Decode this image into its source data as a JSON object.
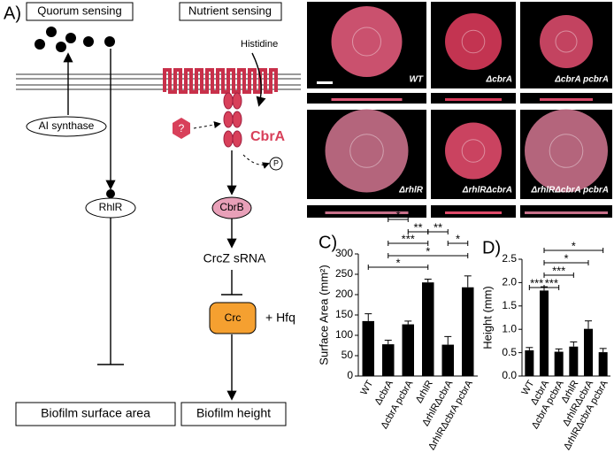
{
  "diagram": {
    "panel": "A)",
    "quorum_title": "Quorum sensing",
    "nutrient_title": "Nutrient sensing",
    "histidine": "Histidine",
    "ai_synthase": "AI synthase",
    "unknown": "?",
    "cbra": "CbrA",
    "phospho": "P",
    "rhlr": "RhlR",
    "cbrb": "CbrB",
    "crcz": "CrcZ sRNA",
    "crc": "Crc",
    "hfq": "+ Hfq",
    "output_area": "Biofilm surface area",
    "output_height": "Biofilm height"
  },
  "images": {
    "panel": "B)",
    "labels": [
      "WT",
      "ΔcbrA",
      "ΔcbrA pcbrA",
      "ΔrhlR",
      "ΔrhlRΔcbrA",
      "ΔrhlRΔcbrA pcbrA"
    ]
  },
  "chart_data": [
    {
      "type": "bar",
      "panel": "C)",
      "ylabel": "Surface Area (mm²)",
      "categories": [
        "WT",
        "ΔcbrA",
        "ΔcbrA pcbrA",
        "ΔrhlR",
        "ΔrhlRΔcbrA",
        "ΔrhlRΔcbrA pcbrA"
      ],
      "values": [
        135,
        78,
        127,
        230,
        77,
        218
      ],
      "errors": [
        18,
        10,
        8,
        8,
        20,
        28
      ],
      "color": "#000000",
      "ylim": [
        0,
        300
      ],
      "yticks": [
        0,
        50,
        100,
        150,
        200,
        250,
        300
      ],
      "annotations": [
        "*",
        "*",
        "***",
        "**",
        "**",
        "*",
        "*"
      ]
    },
    {
      "type": "bar",
      "panel": "D)",
      "ylabel": "Height (mm)",
      "categories": [
        "WT",
        "ΔcbrA",
        "ΔcbrA pcbrA",
        "ΔrhlR",
        "ΔrhlRΔcbrA",
        "ΔrhlRΔcbrA pcbrA"
      ],
      "values": [
        0.55,
        1.83,
        0.52,
        0.63,
        1.01,
        0.51
      ],
      "errors": [
        0.06,
        0.08,
        0.06,
        0.1,
        0.17,
        0.08
      ],
      "color": "#000000",
      "ylim": [
        0,
        2.5
      ],
      "yticks": [
        {
          "value": 0,
          "label": "0.0"
        },
        0.5,
        {
          "value": 1,
          "label": "1.0"
        },
        1.5,
        {
          "value": 2,
          "label": "2.0"
        },
        2.5
      ],
      "annotations": [
        "***",
        "***",
        "***",
        "*",
        "*"
      ]
    }
  ]
}
